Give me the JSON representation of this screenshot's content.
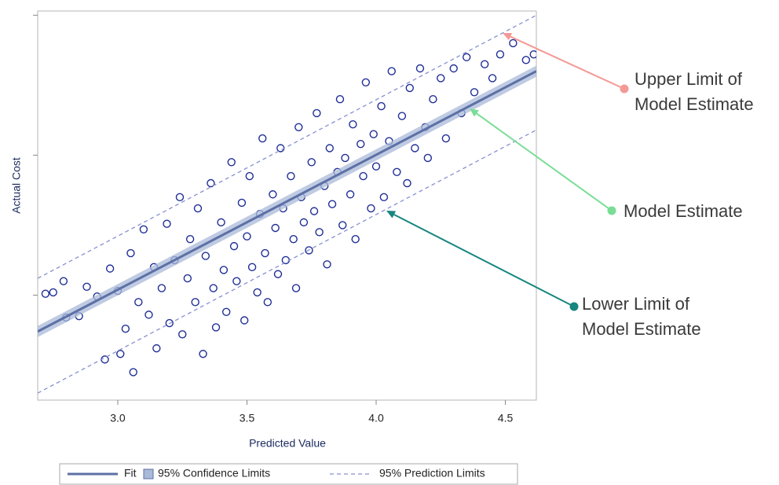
{
  "chart_data": {
    "type": "scatter",
    "x_label": "Predicted Value",
    "y_label": "Actual Cost",
    "xlim": [
      2.69,
      4.62
    ],
    "ylim": [
      2.25,
      5.03
    ],
    "xticks": [
      {
        "value": 3,
        "label": "3.0"
      },
      3.5,
      {
        "value": 4,
        "label": "4.0"
      },
      4.5
    ],
    "yticks": [
      3,
      4,
      5
    ],
    "legend": "bottom",
    "points": {
      "color": "#1f2e96",
      "x": [
        2.72,
        2.75,
        2.79,
        2.8,
        2.85,
        2.88,
        2.92,
        2.95,
        2.97,
        3.0,
        3.01,
        3.03,
        3.05,
        3.06,
        3.08,
        3.1,
        3.12,
        3.14,
        3.15,
        3.17,
        3.19,
        3.2,
        3.22,
        3.24,
        3.25,
        3.27,
        3.28,
        3.3,
        3.31,
        3.33,
        3.34,
        3.36,
        3.37,
        3.38,
        3.4,
        3.41,
        3.42,
        3.44,
        3.45,
        3.46,
        3.48,
        3.49,
        3.5,
        3.51,
        3.52,
        3.54,
        3.55,
        3.56,
        3.57,
        3.58,
        3.6,
        3.61,
        3.62,
        3.63,
        3.64,
        3.65,
        3.67,
        3.68,
        3.69,
        3.7,
        3.71,
        3.72,
        3.74,
        3.75,
        3.76,
        3.77,
        3.78,
        3.8,
        3.81,
        3.82,
        3.83,
        3.85,
        3.86,
        3.87,
        3.88,
        3.9,
        3.91,
        3.92,
        3.94,
        3.95,
        3.96,
        3.98,
        3.99,
        4.0,
        4.02,
        4.03,
        4.05,
        4.06,
        4.08,
        4.1,
        4.12,
        4.13,
        4.15,
        4.17,
        4.19,
        4.2,
        4.22,
        4.25,
        4.27,
        4.3,
        4.33,
        4.35,
        4.38,
        4.42,
        4.45,
        4.48,
        4.53,
        4.58,
        4.61
      ],
      "y": [
        3.01,
        3.02,
        3.1,
        2.84,
        2.85,
        3.06,
        2.99,
        2.54,
        3.19,
        3.03,
        2.58,
        2.76,
        3.3,
        2.45,
        2.95,
        3.47,
        2.86,
        3.2,
        2.62,
        3.05,
        3.51,
        2.8,
        3.25,
        3.7,
        2.72,
        3.12,
        3.4,
        2.95,
        3.62,
        2.58,
        3.28,
        3.8,
        3.05,
        2.77,
        3.52,
        3.18,
        2.88,
        3.95,
        3.35,
        3.1,
        3.66,
        2.82,
        3.42,
        3.85,
        3.2,
        3.02,
        3.58,
        4.12,
        3.3,
        2.95,
        3.72,
        3.48,
        3.15,
        4.05,
        3.62,
        3.25,
        3.85,
        3.4,
        3.05,
        4.2,
        3.7,
        3.52,
        3.32,
        3.95,
        3.6,
        4.3,
        3.45,
        3.78,
        3.22,
        4.05,
        3.65,
        3.88,
        4.4,
        3.5,
        3.98,
        3.72,
        4.22,
        3.4,
        4.08,
        3.85,
        4.52,
        3.62,
        4.15,
        3.92,
        4.35,
        3.7,
        4.1,
        4.6,
        3.88,
        4.28,
        3.8,
        4.48,
        4.05,
        4.62,
        4.2,
        3.98,
        4.4,
        4.55,
        4.12,
        4.62,
        4.3,
        4.7,
        4.45,
        4.65,
        4.55,
        4.72,
        4.8,
        4.68,
        4.72
      ]
    },
    "confidence": {
      "name": "95% Confidence Limits",
      "color": "#a9b9d8",
      "x": [
        2.69,
        4.62
      ],
      "lower": [
        2.7,
        4.56
      ],
      "upper": [
        2.78,
        4.64
      ]
    },
    "fit": {
      "name": "Fit",
      "color": "#5d70a6",
      "x": [
        2.69,
        4.62
      ],
      "y": [
        2.74,
        4.6
      ]
    },
    "prediction": {
      "name": "95% Prediction Limits",
      "color": "#8690cf",
      "x": [
        2.69,
        4.62
      ],
      "upper": [
        3.12,
        5.0
      ],
      "lower": [
        2.3,
        4.18
      ]
    },
    "annotations": [
      {
        "lines": [
          "Upper Limit of",
          "Model Estimate"
        ],
        "color": "#f39a96"
      },
      {
        "lines": [
          "Model Estimate"
        ],
        "color": "#79dd96"
      },
      {
        "lines": [
          "Lower Limit of",
          "Model Estimate"
        ],
        "color": "#17867f"
      }
    ]
  }
}
